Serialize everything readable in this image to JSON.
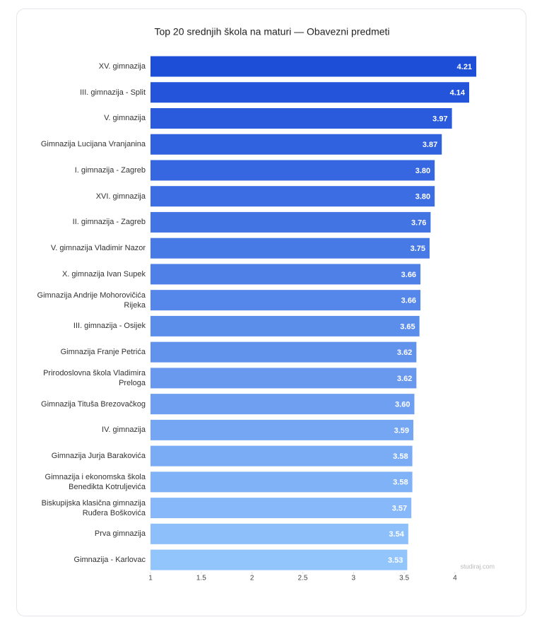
{
  "chart_data": {
    "type": "hbar",
    "title": "Top 20 srednjih škola na maturi — Obavezni predmeti",
    "watermark": "studiraj.com",
    "categories": [
      "XV. gimnazija",
      "III. gimnazija - Split",
      "V. gimnazija",
      "Gimnazija Lucijana Vranjanina",
      "I. gimnazija - Zagreb",
      "XVI. gimnazija",
      "II. gimnazija - Zagreb",
      "V. gimnazija Vladimir Nazor",
      "X. gimnazija Ivan Supek",
      "Gimnazija Andrije Mohorovičića Rijeka",
      "III. gimnazija - Osijek",
      "Gimnazija Franje Petrića",
      "Prirodoslovna škola Vladimira Prelogа",
      "Gimnazija Tituša Brezovačkog",
      "IV. gimnazija",
      "Gimnazija Jurja Barakovića",
      "Gimnazija i ekonomska škola Benedikta Kotruljevića",
      "Biskupijska klasična gimnazija Ruđera Boškovića",
      "Prva gimnazija",
      "Gimnazija - Karlovac"
    ],
    "values": [
      4.21,
      4.14,
      3.97,
      3.87,
      3.8,
      3.8,
      3.76,
      3.75,
      3.66,
      3.66,
      3.65,
      3.62,
      3.62,
      3.6,
      3.59,
      3.58,
      3.58,
      3.57,
      3.54,
      3.53
    ],
    "value_labels": [
      "4.21",
      "4.14",
      "3.97",
      "3.87",
      "3.80",
      "3.80",
      "3.76",
      "3.75",
      "3.66",
      "3.66",
      "3.65",
      "3.62",
      "3.62",
      "3.60",
      "3.59",
      "3.58",
      "3.58",
      "3.57",
      "3.54",
      "3.53"
    ],
    "color_range": [
      "#1d4ed8",
      "#93c5fd"
    ],
    "xlim": [
      1,
      4.3
    ],
    "xticks": [
      1,
      1.5,
      2,
      2.5,
      3,
      3.5,
      4
    ],
    "grid": false
  }
}
